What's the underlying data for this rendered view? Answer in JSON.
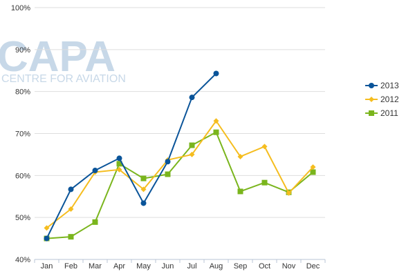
{
  "watermark": {
    "logo_text": "CAPA",
    "tagline": "CENTRE FOR AVIATION"
  },
  "chart_data": {
    "type": "line",
    "categories": [
      "Jan",
      "Feb",
      "Mar",
      "Apr",
      "May",
      "Jun",
      "Jul",
      "Aug",
      "Sep",
      "Oct",
      "Nov",
      "Dec"
    ],
    "yticks": [
      "40%",
      "50%",
      "60%",
      "70%",
      "80%",
      "90%",
      "100%"
    ],
    "ylim": [
      40,
      100
    ],
    "grid": true,
    "legend_position": "right",
    "series": [
      {
        "name": "2013",
        "color": "#0a5499",
        "marker": "circle",
        "values": [
          45.0,
          56.7,
          61.2,
          64.1,
          53.4,
          63.3,
          78.6,
          84.3,
          null,
          null,
          null,
          null
        ]
      },
      {
        "name": "2012",
        "color": "#f5bd1f",
        "marker": "diamond",
        "values": [
          47.5,
          52.0,
          60.8,
          61.4,
          56.7,
          63.7,
          65.0,
          73.0,
          64.5,
          66.9,
          55.8,
          62.0
        ]
      },
      {
        "name": "2011",
        "color": "#7ab51d",
        "marker": "square",
        "values": [
          45.0,
          45.4,
          48.9,
          62.8,
          59.3,
          60.3,
          67.2,
          70.3,
          56.2,
          58.3,
          56.0,
          60.8
        ]
      }
    ]
  }
}
